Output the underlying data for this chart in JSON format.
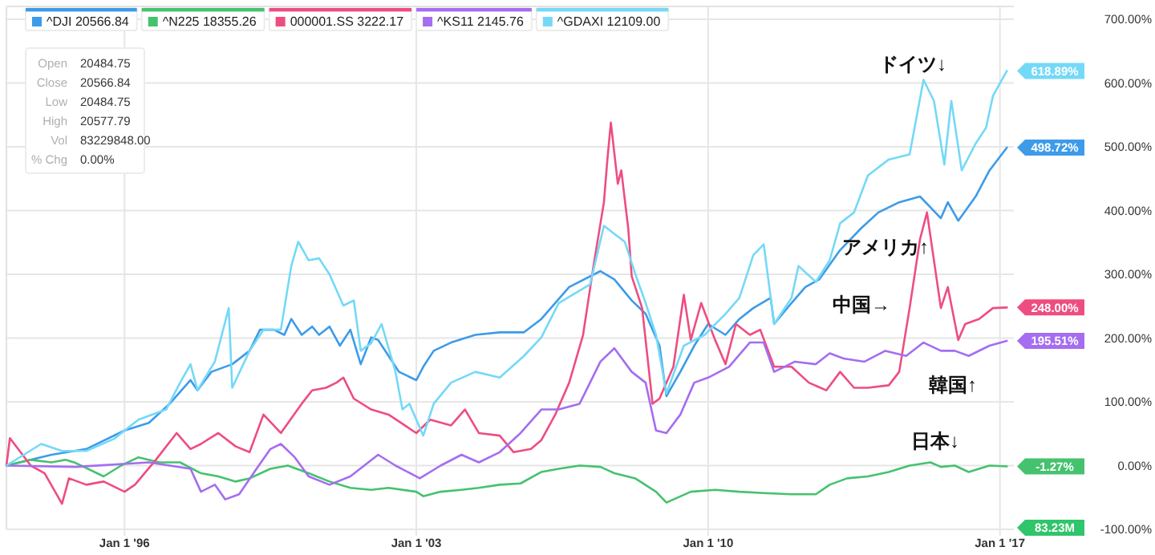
{
  "chart_data": {
    "type": "line",
    "xlim": [
      "1993-03",
      "2017-05"
    ],
    "ylim": [
      -100,
      700
    ],
    "xticks": [
      {
        "value": "1996-01-01",
        "label": "Jan 1 '96"
      },
      {
        "value": "2003-01-01",
        "label": "Jan 1 '03"
      },
      {
        "value": "2010-01-01",
        "label": "Jan 1 '10"
      },
      {
        "value": "2017-01-01",
        "label": "Jan 1 '17"
      }
    ],
    "yticks": [
      {
        "value": 700,
        "label": "700.00%"
      },
      {
        "value": 600,
        "label": "600.00%"
      },
      {
        "value": 500,
        "label": "500.00%"
      },
      {
        "value": 400,
        "label": "400.00%"
      },
      {
        "value": 300,
        "label": "300.00%"
      },
      {
        "value": 200,
        "label": "200.00%"
      },
      {
        "value": 100,
        "label": "100.00%"
      },
      {
        "value": 0,
        "label": "0.00%"
      },
      {
        "value": -100,
        "label": "-100.00%"
      }
    ],
    "grid": true,
    "legend": "top left",
    "series": [
      {
        "name": "^DJI 20566.84",
        "color": "#3d9be9",
        "x": [
          "1993-03",
          "1994-04",
          "1995-02",
          "1996-01",
          "1996-08",
          "1997-02",
          "1997-08",
          "1997-10",
          "1998-02",
          "1998-08",
          "1999-01",
          "1999-04",
          "1999-08",
          "1999-11",
          "2000-01",
          "2000-04",
          "2000-07",
          "2000-09",
          "2000-12",
          "2001-03",
          "2001-06",
          "2001-09",
          "2001-12",
          "2002-02",
          "2002-05",
          "2002-08",
          "2003-01",
          "2003-03",
          "2003-06",
          "2003-11",
          "2004-06",
          "2005-01",
          "2005-08",
          "2006-01",
          "2006-09",
          "2007-06",
          "2007-10",
          "2008-03",
          "2008-07",
          "2008-11",
          "2009-01",
          "2009-05",
          "2009-09",
          "2010-01",
          "2010-06",
          "2010-10",
          "2011-02",
          "2011-07",
          "2011-08",
          "2012-01",
          "2012-05",
          "2012-09",
          "2013-03",
          "2013-09",
          "2014-02",
          "2014-08",
          "2015-02",
          "2015-08",
          "2015-10",
          "2016-01",
          "2016-06",
          "2016-10",
          "2017-03"
        ],
        "values": [
          0,
          17,
          26,
          55,
          67,
          97,
          134,
          118,
          147,
          159,
          180,
          213,
          213,
          205,
          230,
          205,
          218,
          205,
          218,
          188,
          213,
          159,
          201,
          197,
          172,
          147,
          134,
          155,
          180,
          193,
          205,
          209,
          209,
          230,
          280,
          305,
          292,
          259,
          238,
          188,
          109,
          147,
          188,
          222,
          205,
          230,
          247,
          263,
          222,
          255,
          280,
          292,
          338,
          372,
          397,
          413,
          422,
          388,
          413,
          384,
          422,
          463,
          498.72
        ]
      },
      {
        "name": "^N225 18355.26",
        "color": "#45c26e",
        "x": [
          "1993-03",
          "1993-10",
          "1994-04",
          "1994-08",
          "1994-11",
          "1995-07",
          "1995-12",
          "1996-05",
          "1996-11",
          "1997-05",
          "1997-11",
          "1998-04",
          "1998-09",
          "1999-01",
          "1999-07",
          "1999-12",
          "2000-06",
          "2000-12",
          "2001-06",
          "2001-12",
          "2002-05",
          "2003-01",
          "2003-03",
          "2003-08",
          "2004-02",
          "2004-07",
          "2005-01",
          "2005-07",
          "2006-01",
          "2006-06",
          "2006-12",
          "2007-06",
          "2007-10",
          "2008-04",
          "2008-10",
          "2009-01",
          "2009-08",
          "2010-03",
          "2010-10",
          "2011-05",
          "2012-01",
          "2012-08",
          "2012-12",
          "2013-05",
          "2013-11",
          "2014-05",
          "2014-11",
          "2015-05",
          "2015-08",
          "2015-12",
          "2016-04",
          "2016-10",
          "2017-03"
        ],
        "values": [
          0,
          9,
          5,
          9,
          4,
          -17,
          0,
          13,
          5,
          5,
          -12,
          -17,
          -25,
          -20,
          -5,
          0,
          -12,
          -25,
          -35,
          -38,
          -35,
          -41,
          -48,
          -41,
          -38,
          -35,
          -30,
          -28,
          -10,
          -5,
          0,
          -2,
          -12,
          -20,
          -41,
          -58,
          -41,
          -38,
          -41,
          -43,
          -45,
          -45,
          -30,
          -20,
          -17,
          -10,
          0,
          5,
          -2,
          0,
          -10,
          0,
          -1.27
        ]
      },
      {
        "name": "000001.SS 3222.17",
        "color": "#ee4d80",
        "x": [
          "1993-03",
          "1993-04",
          "1993-10",
          "1994-02",
          "1994-07",
          "1994-09",
          "1995-02",
          "1995-07",
          "1996-01",
          "1996-04",
          "1996-10",
          "1997-04",
          "1997-08",
          "1997-11",
          "1998-04",
          "1998-09",
          "1999-01",
          "1999-05",
          "1999-10",
          "2000-04",
          "2000-07",
          "2000-11",
          "2001-02",
          "2001-04",
          "2001-07",
          "2001-12",
          "2002-05",
          "2003-01",
          "2003-05",
          "2003-11",
          "2004-03",
          "2004-07",
          "2005-01",
          "2005-05",
          "2005-10",
          "2006-01",
          "2006-05",
          "2006-09",
          "2007-01",
          "2007-04",
          "2007-07",
          "2007-08",
          "2007-09",
          "2007-11",
          "2007-12",
          "2008-02",
          "2008-03",
          "2008-06",
          "2008-09",
          "2008-11",
          "2009-03",
          "2009-06",
          "2009-08",
          "2009-11",
          "2010-03",
          "2010-06",
          "2010-09",
          "2011-01",
          "2011-04",
          "2011-08",
          "2012-01",
          "2012-06",
          "2012-11",
          "2013-03",
          "2013-07",
          "2013-11",
          "2014-05",
          "2014-08",
          "2014-11",
          "2015-02",
          "2015-04",
          "2015-08",
          "2015-10",
          "2016-01",
          "2016-03",
          "2016-07",
          "2016-11",
          "2017-03"
        ],
        "values": [
          0,
          43,
          0,
          -12,
          -60,
          -20,
          -30,
          -25,
          -41,
          -30,
          9,
          51,
          26,
          34,
          51,
          30,
          21,
          80,
          51,
          97,
          118,
          122,
          130,
          138,
          105,
          88,
          80,
          51,
          72,
          63,
          88,
          51,
          47,
          21,
          26,
          40,
          80,
          130,
          205,
          313,
          413,
          480,
          538,
          442,
          463,
          372,
          297,
          247,
          97,
          105,
          155,
          268,
          197,
          255,
          197,
          159,
          222,
          205,
          213,
          155,
          155,
          130,
          118,
          147,
          122,
          122,
          126,
          147,
          247,
          355,
          397,
          247,
          280,
          197,
          222,
          230,
          247,
          248.0
        ]
      },
      {
        "name": "^KS11 2145.76",
        "color": "#a56df0",
        "x": [
          "1993-03",
          "1994-11",
          "1996-08",
          "1997-08",
          "1997-11",
          "1998-03",
          "1998-06",
          "1998-10",
          "1999-03",
          "1999-07",
          "1999-10",
          "2000-02",
          "2000-06",
          "2000-12",
          "2001-06",
          "2001-10",
          "2002-02",
          "2002-07",
          "2003-02",
          "2003-08",
          "2004-02",
          "2004-07",
          "2005-01",
          "2005-07",
          "2006-01",
          "2006-06",
          "2006-12",
          "2007-06",
          "2007-10",
          "2008-03",
          "2008-07",
          "2008-10",
          "2009-01",
          "2009-05",
          "2009-09",
          "2010-01",
          "2010-07",
          "2011-01",
          "2011-05",
          "2011-08",
          "2012-02",
          "2012-08",
          "2012-12",
          "2013-04",
          "2013-10",
          "2014-04",
          "2014-10",
          "2015-03",
          "2015-08",
          "2015-12",
          "2016-04",
          "2016-10",
          "2017-03"
        ],
        "values": [
          0,
          -2,
          5,
          -5,
          -41,
          -30,
          -53,
          -45,
          -5,
          26,
          34,
          13,
          -17,
          -30,
          -17,
          0,
          17,
          0,
          -20,
          0,
          17,
          5,
          21,
          51,
          88,
          88,
          97,
          163,
          184,
          147,
          130,
          55,
          51,
          80,
          130,
          138,
          155,
          193,
          193,
          147,
          163,
          159,
          176,
          168,
          163,
          180,
          172,
          193,
          180,
          180,
          172,
          188,
          195.51
        ]
      },
      {
        "name": "^GDAXI 12109.00",
        "color": "#74d9f7",
        "x": [
          "1993-03",
          "1994-01",
          "1994-07",
          "1995-02",
          "1995-10",
          "1996-05",
          "1997-01",
          "1997-05",
          "1997-08",
          "1997-10",
          "1998-03",
          "1998-07",
          "1998-08",
          "1999-01",
          "1999-05",
          "1999-10",
          "2000-01",
          "2000-03",
          "2000-06",
          "2000-09",
          "2000-12",
          "2001-04",
          "2001-07",
          "2001-09",
          "2001-12",
          "2002-03",
          "2002-07",
          "2002-09",
          "2002-11",
          "2003-03",
          "2003-06",
          "2003-11",
          "2004-06",
          "2005-01",
          "2005-08",
          "2006-01",
          "2006-06",
          "2007-03",
          "2007-07",
          "2008-01",
          "2008-04",
          "2008-07",
          "2008-10",
          "2009-01",
          "2009-06",
          "2009-12",
          "2010-06",
          "2010-10",
          "2011-02",
          "2011-05",
          "2011-08",
          "2012-01",
          "2012-03",
          "2012-08",
          "2012-12",
          "2013-03",
          "2013-07",
          "2013-11",
          "2014-05",
          "2014-11",
          "2015-03",
          "2015-06",
          "2015-09",
          "2015-11",
          "2016-02",
          "2016-06",
          "2016-09",
          "2016-11",
          "2017-03"
        ],
        "values": [
          0,
          34,
          23,
          23,
          42,
          72,
          88,
          130,
          159,
          118,
          163,
          247,
          122,
          180,
          213,
          213,
          313,
          351,
          322,
          325,
          300,
          251,
          259,
          180,
          192,
          222,
          147,
          88,
          97,
          47,
          97,
          130,
          147,
          138,
          172,
          201,
          255,
          284,
          376,
          351,
          301,
          255,
          205,
          113,
          188,
          205,
          238,
          263,
          330,
          347,
          222,
          263,
          313,
          288,
          322,
          380,
          397,
          455,
          480,
          488,
          605,
          572,
          472,
          572,
          463,
          505,
          530,
          580,
          618.89
        ]
      }
    ],
    "annotations": [
      "Open",
      "20484.75",
      "Close",
      "20566.84",
      "Low",
      "20484.75",
      "High",
      "20577.79",
      "Vol",
      "83229848.00",
      "% Chg",
      "0.00%",
      {
        "text": "618.89%",
        "x": "2017-03",
        "y": 618.89
      },
      {
        "text": "498.72%",
        "x": "2017-03",
        "y": 498.72
      },
      {
        "text": "248.00%",
        "x": "2017-03",
        "y": 248.0
      },
      {
        "text": "195.51%",
        "x": "2017-03",
        "y": 195.51
      },
      {
        "text": "-1.27%",
        "x": "2017-03",
        "y": -1.27
      },
      "83.23M",
      "ドイツ↓",
      "アメリカ↑",
      "中国→",
      "韓国↑",
      "日本↓"
    ]
  }
}
